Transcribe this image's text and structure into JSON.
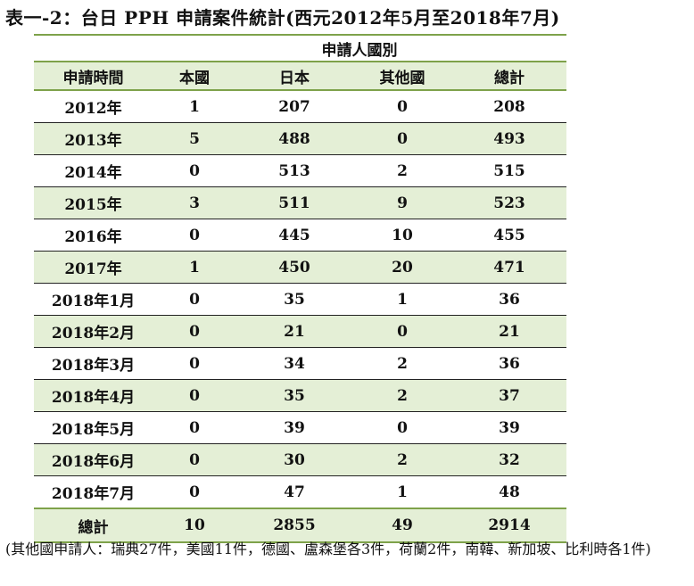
{
  "title": "表一-2：台日 PPH 申請案件統計(西元2012年5月至2018年7月)",
  "table": {
    "group_header": "申請人國別",
    "columns": [
      "申請時間",
      "本國",
      "日本",
      "其他國",
      "總計"
    ],
    "rows": [
      [
        "2012年",
        "1",
        "207",
        "0",
        "208"
      ],
      [
        "2013年",
        "5",
        "488",
        "0",
        "493"
      ],
      [
        "2014年",
        "0",
        "513",
        "2",
        "515"
      ],
      [
        "2015年",
        "3",
        "511",
        "9",
        "523"
      ],
      [
        "2016年",
        "0",
        "445",
        "10",
        "455"
      ],
      [
        "2017年",
        "1",
        "450",
        "20",
        "471"
      ],
      [
        "2018年1月",
        "0",
        "35",
        "1",
        "36"
      ],
      [
        "2018年2月",
        "0",
        "21",
        "0",
        "21"
      ],
      [
        "2018年3月",
        "0",
        "34",
        "2",
        "36"
      ],
      [
        "2018年4月",
        "0",
        "35",
        "2",
        "37"
      ],
      [
        "2018年5月",
        "0",
        "39",
        "0",
        "39"
      ],
      [
        "2018年6月",
        "0",
        "30",
        "2",
        "32"
      ],
      [
        "2018年7月",
        "0",
        "47",
        "1",
        "48"
      ]
    ],
    "total": [
      "總計",
      "10",
      "2855",
      "49",
      "2914"
    ]
  },
  "note": "(其他國申請人：瑞典27件，美國11件，德國、盧森堡各3件，荷蘭2件，南韓、新加坡、比利時各1件)",
  "colors": {
    "accent_border": "#7ea24a",
    "stripe": "#e4efd6"
  }
}
